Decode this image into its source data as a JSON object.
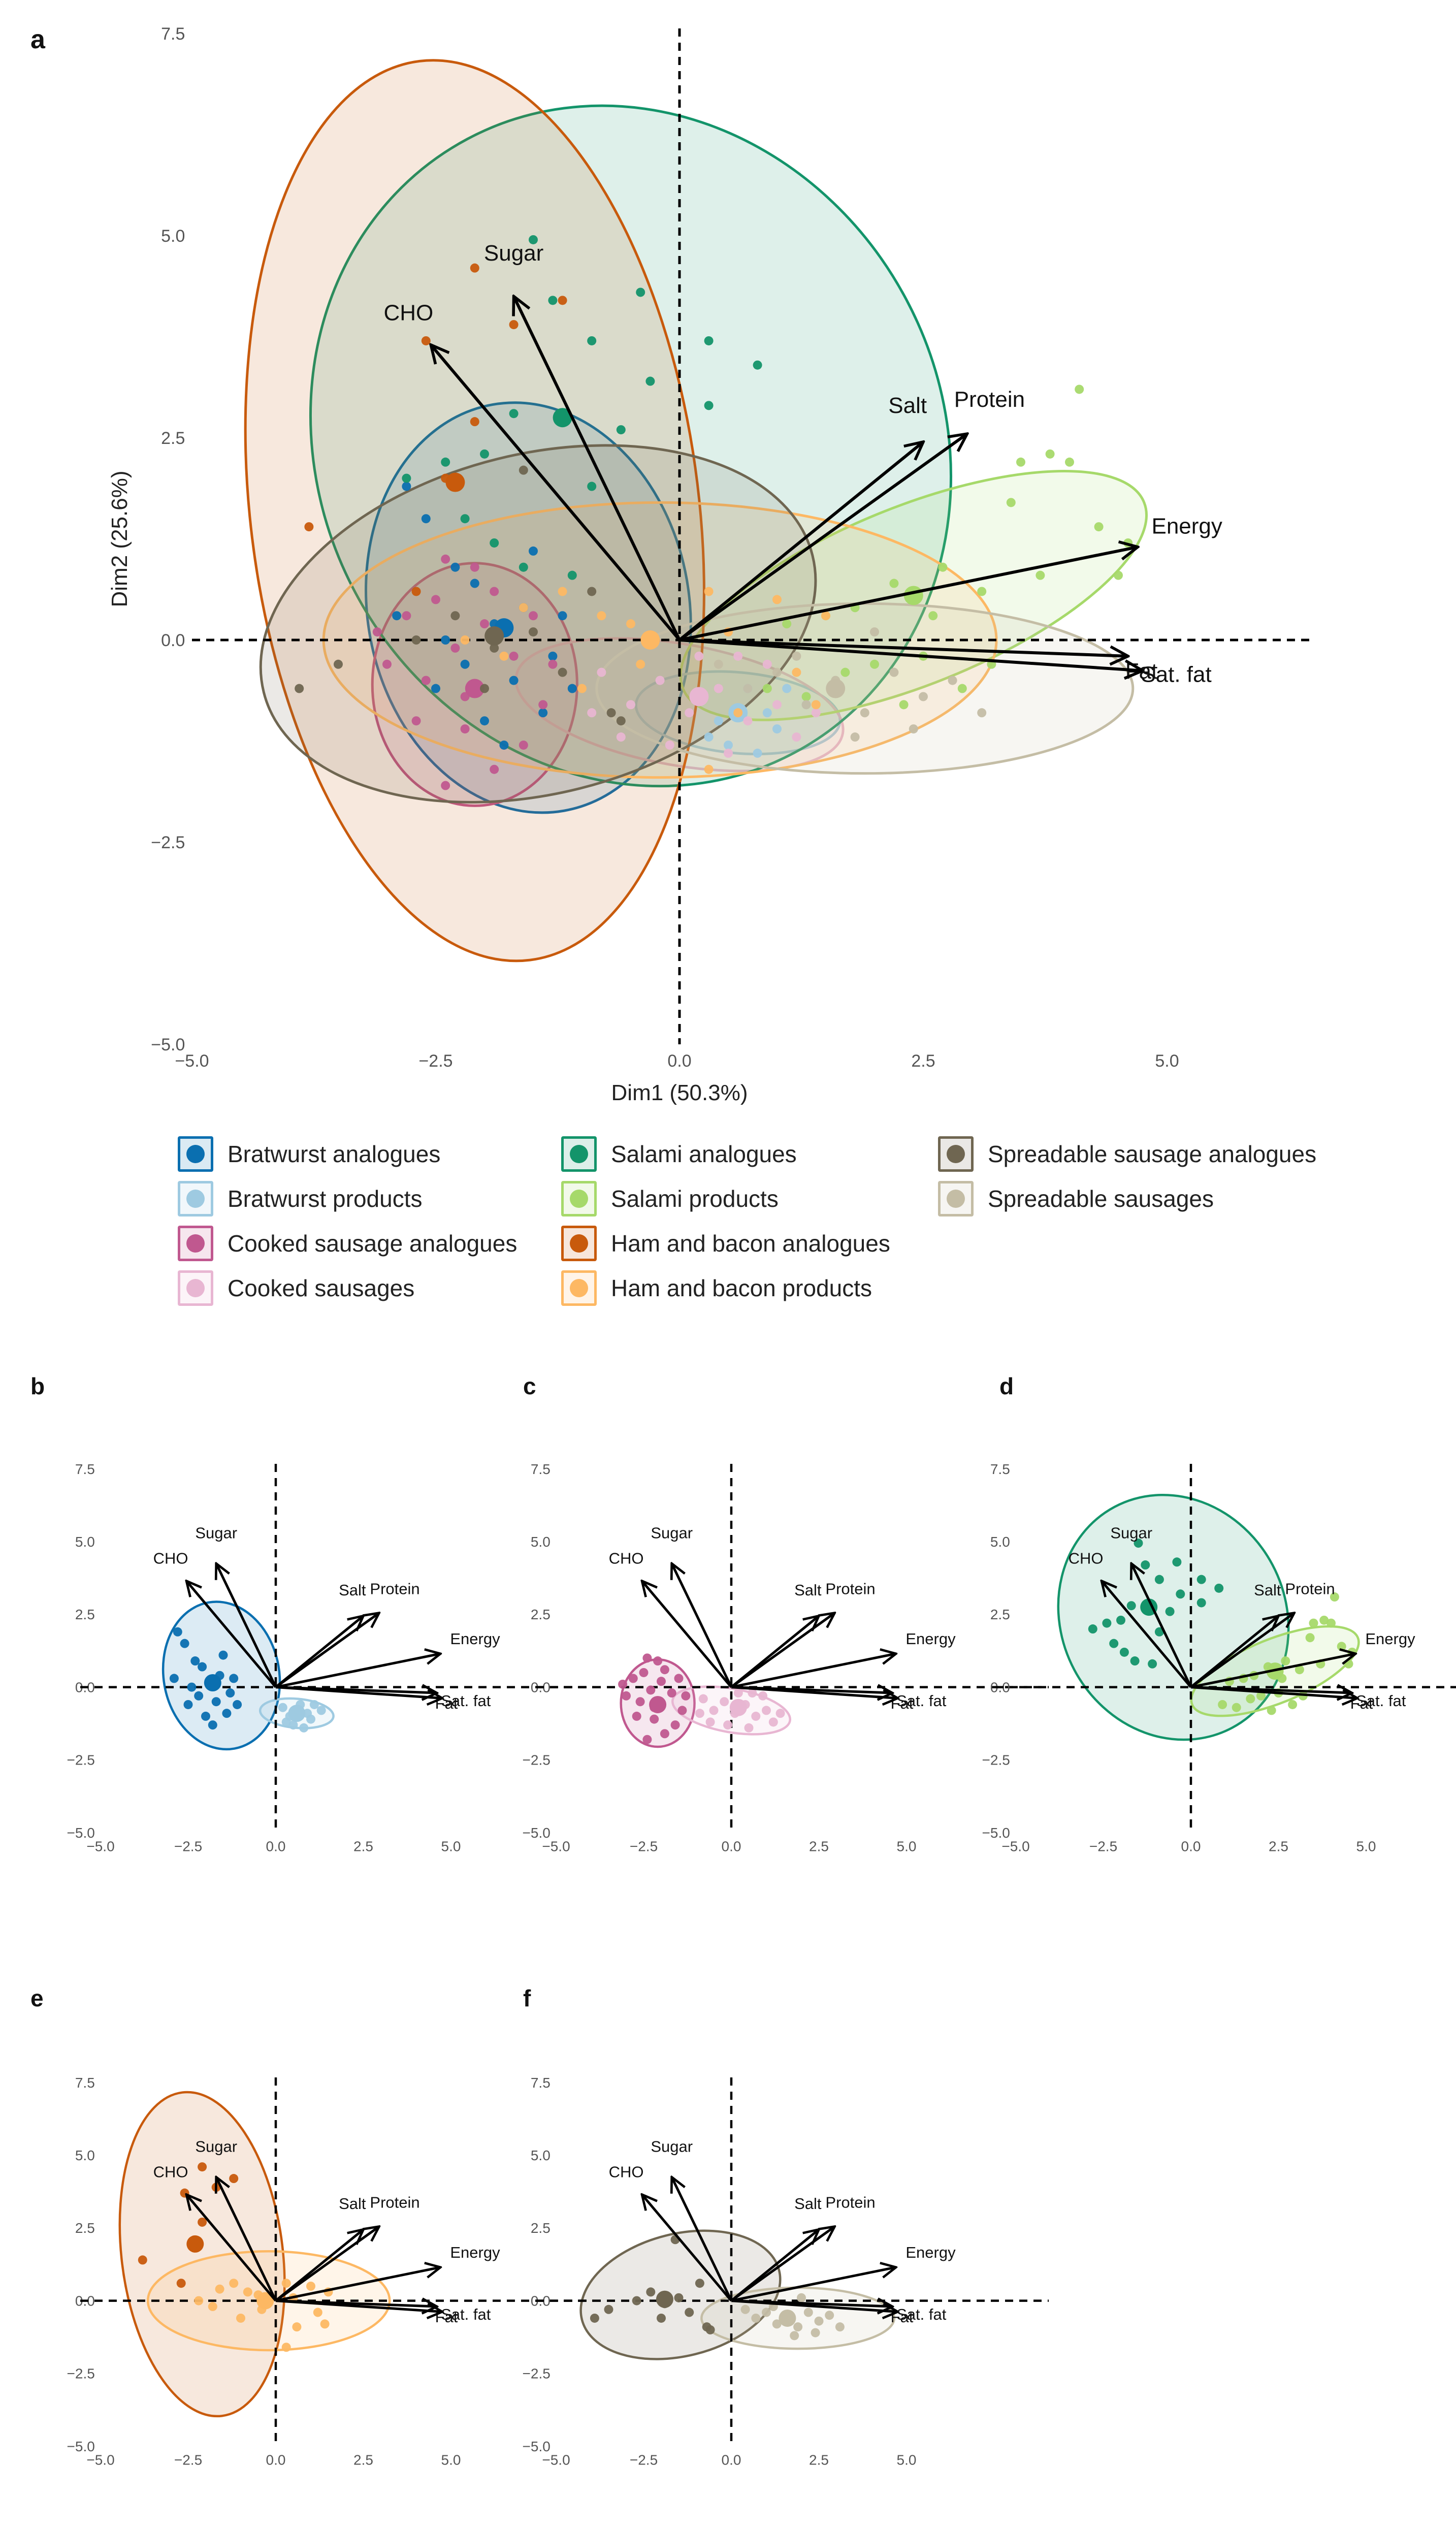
{
  "figure": {
    "panel_letters": [
      "a",
      "b",
      "c",
      "d",
      "e",
      "f"
    ]
  },
  "legend": {
    "items": [
      {
        "label": "Bratwurst analogues",
        "color": "#0a6fb0"
      },
      {
        "label": "Bratwurst products",
        "color": "#9ecae1"
      },
      {
        "label": "Cooked sausage analogues",
        "color": "#c0588f"
      },
      {
        "label": "Cooked sausages",
        "color": "#e8b6d2"
      },
      {
        "label": "Salami analogues",
        "color": "#13946a"
      },
      {
        "label": "Salami products",
        "color": "#a6d96a"
      },
      {
        "label": "Ham and bacon analogues",
        "color": "#c85a0c"
      },
      {
        "label": "Ham and bacon products",
        "color": "#fdb863"
      },
      {
        "label": "Spreadable sausage analogues",
        "color": "#6f6651"
      },
      {
        "label": "Spreadable sausages",
        "color": "#c4bda5"
      }
    ]
  },
  "chart_data": {
    "type": "scatter",
    "subtype": "PCA biplot",
    "xlabel": "Dim1 (50.3%)",
    "ylabel": "Dim2 (25.6%)",
    "xlim": [
      -5.0,
      5.0
    ],
    "ylim": [
      -5.0,
      7.5
    ],
    "xticks": [
      "−5.0",
      "−2.5",
      "0.0",
      "2.5",
      "5.0"
    ],
    "yticks": [
      "−5.0",
      "−2.5",
      "0.0",
      "2.5",
      "5.0",
      "7.5"
    ],
    "reference_lines": {
      "x": 0,
      "y": 0,
      "style": "dashed"
    },
    "loadings": [
      {
        "name": "Sugar",
        "x": -1.7,
        "y": 4.25
      },
      {
        "name": "CHO",
        "x": -2.55,
        "y": 3.65
      },
      {
        "name": "Salt",
        "x": 2.5,
        "y": 2.45
      },
      {
        "name": "Protein",
        "x": 2.95,
        "y": 2.55
      },
      {
        "name": "Energy",
        "x": 4.7,
        "y": 1.15
      },
      {
        "name": "Fat",
        "x": 4.6,
        "y": -0.2
      },
      {
        "name": "Sat. fat",
        "x": 4.75,
        "y": -0.38
      }
    ],
    "groups": [
      {
        "name": "Bratwurst analogues",
        "centroid": [
          -1.8,
          0.15
        ],
        "ellipse": {
          "cx": -1.55,
          "cy": 0.4,
          "rx": 1.65,
          "ry": 2.55,
          "angle": 10
        },
        "points": [
          [
            -2.8,
            1.9
          ],
          [
            -2.6,
            1.5
          ],
          [
            -2.3,
            0.9
          ],
          [
            -2.1,
            0.7
          ],
          [
            -2.9,
            0.3
          ],
          [
            -1.5,
            1.1
          ],
          [
            -1.6,
            0.4
          ],
          [
            -1.9,
            0.2
          ],
          [
            -2.2,
            -0.3
          ],
          [
            -1.3,
            -0.2
          ],
          [
            -1.7,
            -0.5
          ],
          [
            -2.5,
            -0.6
          ],
          [
            -1.4,
            -0.9
          ],
          [
            -1.1,
            -0.6
          ],
          [
            -2.0,
            -1.0
          ],
          [
            -1.8,
            -1.3
          ],
          [
            -2.4,
            0.0
          ],
          [
            -1.2,
            0.3
          ]
        ]
      },
      {
        "name": "Bratwurst products",
        "centroid": [
          0.6,
          -0.9
        ],
        "ellipse": {
          "cx": 0.6,
          "cy": -0.9,
          "rx": 1.05,
          "ry": 0.5,
          "angle": -5
        },
        "points": [
          [
            0.2,
            -0.7
          ],
          [
            0.4,
            -1.0
          ],
          [
            0.7,
            -0.6
          ],
          [
            1.0,
            -1.1
          ],
          [
            0.5,
            -1.3
          ],
          [
            0.9,
            -0.9
          ],
          [
            1.3,
            -0.8
          ],
          [
            0.3,
            -1.2
          ],
          [
            0.8,
            -1.4
          ],
          [
            1.1,
            -0.6
          ]
        ]
      },
      {
        "name": "Cooked sausage analogues",
        "centroid": [
          -2.1,
          -0.6
        ],
        "ellipse": {
          "cx": -2.1,
          "cy": -0.55,
          "rx": 1.05,
          "ry": 1.5,
          "angle": 0
        },
        "points": [
          [
            -2.4,
            1.0
          ],
          [
            -2.1,
            0.9
          ],
          [
            -1.9,
            0.6
          ],
          [
            -2.8,
            0.3
          ],
          [
            -3.0,
            -0.3
          ],
          [
            -2.6,
            -0.5
          ],
          [
            -2.3,
            -0.1
          ],
          [
            -1.7,
            -0.2
          ],
          [
            -1.4,
            -0.8
          ],
          [
            -1.6,
            -1.3
          ],
          [
            -2.2,
            -1.1
          ],
          [
            -2.7,
            -1.0
          ],
          [
            -1.9,
            -1.6
          ],
          [
            -2.4,
            -1.8
          ],
          [
            -1.3,
            -0.3
          ],
          [
            -2.0,
            0.2
          ],
          [
            -2.5,
            0.5
          ],
          [
            -1.5,
            0.3
          ],
          [
            -3.1,
            0.1
          ],
          [
            -2.2,
            -0.7
          ]
        ]
      },
      {
        "name": "Cooked sausages",
        "centroid": [
          0.2,
          -0.7
        ],
        "ellipse": {
          "cx": 0.0,
          "cy": -0.8,
          "rx": 1.7,
          "ry": 0.75,
          "angle": -10
        },
        "points": [
          [
            -0.8,
            -0.4
          ],
          [
            -0.5,
            -0.8
          ],
          [
            -0.2,
            -0.5
          ],
          [
            0.1,
            -0.9
          ],
          [
            0.4,
            -0.6
          ],
          [
            0.7,
            -1.0
          ],
          [
            1.0,
            -0.8
          ],
          [
            1.2,
            -1.2
          ],
          [
            -0.6,
            -1.2
          ],
          [
            -0.1,
            -1.3
          ],
          [
            0.5,
            -1.4
          ],
          [
            0.9,
            -0.3
          ],
          [
            1.4,
            -0.9
          ],
          [
            -0.9,
            -0.9
          ],
          [
            0.2,
            -0.2
          ],
          [
            0.6,
            -0.2
          ]
        ]
      },
      {
        "name": "Salami analogues",
        "centroid": [
          -1.2,
          2.75
        ],
        "ellipse": {
          "cx": -0.5,
          "cy": 2.4,
          "rx": 3.2,
          "ry": 4.3,
          "angle": 28
        },
        "points": [
          [
            -1.5,
            4.95
          ],
          [
            -1.3,
            4.2
          ],
          [
            -0.9,
            3.7
          ],
          [
            -0.4,
            4.3
          ],
          [
            -0.3,
            3.2
          ],
          [
            0.3,
            3.7
          ],
          [
            0.8,
            3.4
          ],
          [
            0.3,
            2.9
          ],
          [
            -0.9,
            1.9
          ],
          [
            -1.9,
            1.2
          ],
          [
            -2.8,
            2.0
          ],
          [
            -2.2,
            1.5
          ],
          [
            -1.6,
            0.9
          ],
          [
            -1.7,
            2.8
          ],
          [
            -2.4,
            2.2
          ],
          [
            -0.6,
            2.6
          ],
          [
            -1.1,
            0.8
          ],
          [
            -2.0,
            2.3
          ]
        ]
      },
      {
        "name": "Salami products",
        "centroid": [
          2.4,
          0.55
        ],
        "ellipse": {
          "cx": 2.4,
          "cy": 0.55,
          "rx": 2.55,
          "ry": 1.1,
          "angle": 22
        },
        "points": [
          [
            4.1,
            3.1
          ],
          [
            3.8,
            2.3
          ],
          [
            3.5,
            2.2
          ],
          [
            4.0,
            2.2
          ],
          [
            3.4,
            1.7
          ],
          [
            4.3,
            1.4
          ],
          [
            4.5,
            0.8
          ],
          [
            4.6,
            1.2
          ],
          [
            3.7,
            0.8
          ],
          [
            3.1,
            0.6
          ],
          [
            2.7,
            0.9
          ],
          [
            2.2,
            0.7
          ],
          [
            1.8,
            0.4
          ],
          [
            1.5,
            0.3
          ],
          [
            1.1,
            0.2
          ],
          [
            2.0,
            -0.3
          ],
          [
            2.5,
            -0.2
          ],
          [
            2.9,
            -0.6
          ],
          [
            2.3,
            -0.8
          ],
          [
            1.7,
            -0.4
          ],
          [
            1.3,
            -0.7
          ],
          [
            0.9,
            -0.6
          ],
          [
            3.2,
            -0.3
          ],
          [
            2.6,
            0.3
          ]
        ]
      },
      {
        "name": "Ham and bacon analogues",
        "centroid": [
          -2.3,
          1.95
        ],
        "ellipse": {
          "cx": -2.1,
          "cy": 1.6,
          "rx": 2.3,
          "ry": 5.6,
          "angle": 7
        },
        "points": [
          [
            -2.1,
            4.6
          ],
          [
            -1.7,
            3.9
          ],
          [
            -2.6,
            3.7
          ],
          [
            -2.1,
            2.7
          ],
          [
            -1.2,
            4.2
          ],
          [
            -3.8,
            1.4
          ],
          [
            -0.3,
            0.0
          ],
          [
            -2.4,
            2.0
          ],
          [
            -2.7,
            0.6
          ]
        ]
      },
      {
        "name": "Ham and bacon products",
        "centroid": [
          -0.3,
          0.0
        ],
        "ellipse": {
          "cx": -0.2,
          "cy": 0.0,
          "rx": 3.45,
          "ry": 1.7,
          "angle": 0
        },
        "points": [
          [
            -1.6,
            0.4
          ],
          [
            -1.2,
            0.6
          ],
          [
            -0.8,
            0.3
          ],
          [
            -0.5,
            0.2
          ],
          [
            0.3,
            0.6
          ],
          [
            0.5,
            0.1
          ],
          [
            1.0,
            0.5
          ],
          [
            1.5,
            0.3
          ],
          [
            1.2,
            -0.4
          ],
          [
            1.4,
            -0.8
          ],
          [
            0.6,
            -0.9
          ],
          [
            0.3,
            -1.6
          ],
          [
            -1.0,
            -0.6
          ],
          [
            -1.8,
            -0.2
          ],
          [
            -2.2,
            0.0
          ],
          [
            -0.4,
            -0.3
          ]
        ]
      },
      {
        "name": "Spreadable sausage analogues",
        "centroid": [
          -1.9,
          0.05
        ],
        "ellipse": {
          "cx": -1.45,
          "cy": 0.2,
          "rx": 2.9,
          "ry": 2.1,
          "angle": 14
        },
        "points": [
          [
            -3.9,
            -0.6
          ],
          [
            -3.5,
            -0.3
          ],
          [
            -2.7,
            0.0
          ],
          [
            -2.3,
            0.3
          ],
          [
            -1.9,
            -0.1
          ],
          [
            -1.5,
            0.1
          ],
          [
            -1.2,
            -0.4
          ],
          [
            -0.9,
            0.6
          ],
          [
            -0.7,
            -0.9
          ],
          [
            -2.0,
            -0.6
          ],
          [
            -1.6,
            2.1
          ],
          [
            -0.6,
            -1.0
          ]
        ]
      },
      {
        "name": "Spreadable sausages",
        "centroid": [
          1.6,
          -0.6
        ],
        "ellipse": {
          "cx": 1.9,
          "cy": -0.6,
          "rx": 2.75,
          "ry": 1.05,
          "angle": 0
        },
        "points": [
          [
            0.4,
            -0.3
          ],
          [
            0.7,
            -0.6
          ],
          [
            1.0,
            -0.4
          ],
          [
            1.3,
            -0.8
          ],
          [
            1.6,
            -0.5
          ],
          [
            1.9,
            -0.9
          ],
          [
            2.2,
            -0.4
          ],
          [
            2.5,
            -0.7
          ],
          [
            2.8,
            -0.5
          ],
          [
            3.1,
            -0.9
          ],
          [
            1.8,
            -1.2
          ],
          [
            2.4,
            -1.1
          ],
          [
            1.2,
            -0.2
          ],
          [
            2.0,
            0.1
          ]
        ]
      }
    ],
    "panels": [
      {
        "letter": "a",
        "groups": "all"
      },
      {
        "letter": "b",
        "groups": [
          "Bratwurst analogues",
          "Bratwurst products"
        ]
      },
      {
        "letter": "c",
        "groups": [
          "Cooked sausage analogues",
          "Cooked sausages"
        ]
      },
      {
        "letter": "d",
        "groups": [
          "Salami analogues",
          "Salami products"
        ]
      },
      {
        "letter": "e",
        "groups": [
          "Ham and bacon analogues",
          "Ham and bacon products"
        ]
      },
      {
        "letter": "f",
        "groups": [
          "Spreadable sausage analogues",
          "Spreadable sausages"
        ]
      }
    ]
  }
}
